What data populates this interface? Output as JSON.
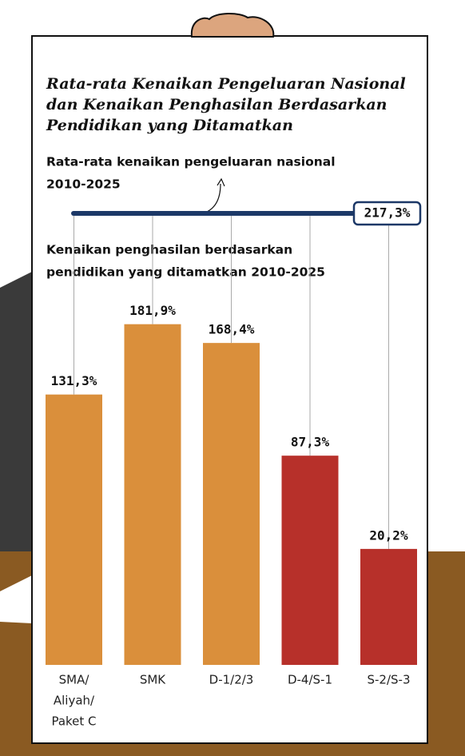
{
  "chart_data": {
    "type": "bar",
    "title": [
      "Rata-rata Kenaikan Pengeluaran Nasional",
      "dan Kenaikan Penghasilan Berdasarkan",
      "Pendidikan yang Ditamatkan"
    ],
    "reference_text": [
      "Rata-rata kenaikan pengeluaran nasional",
      "2010-2025"
    ],
    "reference_value": 217.3,
    "reference_label": "217,3%",
    "reference_color": "#1c3867",
    "subtitle": [
      "Kenaikan penghasilan berdasarkan",
      "pendidikan yang ditamatkan 2010-2025"
    ],
    "categories": [
      [
        "SMA/",
        "Aliyah/",
        "Paket C"
      ],
      [
        "SMK"
      ],
      [
        "D-1/2/3"
      ],
      [
        "D-4/S-1"
      ],
      [
        "S-2/S-3"
      ]
    ],
    "values": [
      131.3,
      181.9,
      168.4,
      87.3,
      20.2
    ],
    "value_labels": [
      "131,3%",
      "181,9%",
      "168,4%",
      "87,3%",
      "20,2%"
    ],
    "colors": [
      "#da8f3b",
      "#da8f3b",
      "#da8f3b",
      "#b7302a",
      "#b7302a"
    ]
  }
}
